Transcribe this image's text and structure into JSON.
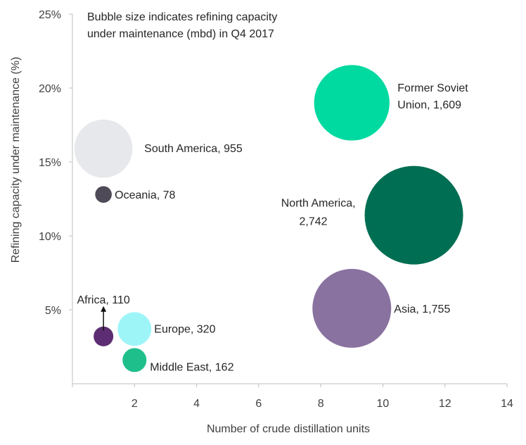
{
  "chart_data": {
    "type": "scatter",
    "title": "",
    "annotation": [
      "Bubble size indicates refining capacity",
      "under maintenance (mbd) in Q4 2017"
    ],
    "xlabel": "Number of crude distillation units",
    "ylabel": "Refining capacity under maintenance (%)",
    "xlim": [
      0,
      14
    ],
    "ylim": [
      0,
      0.25
    ],
    "x_ticks": [
      {
        "value": 2,
        "label": "2"
      },
      {
        "value": 4,
        "label": "4"
      },
      {
        "value": 6,
        "label": "6"
      },
      {
        "value": 8,
        "label": "8"
      },
      {
        "value": 10,
        "label": "10"
      },
      {
        "value": 12,
        "label": "12"
      },
      {
        "value": 14,
        "label": "14"
      }
    ],
    "y_ticks": [
      {
        "value": 0.05,
        "label": "5%"
      },
      {
        "value": 0.1,
        "label": "10%"
      },
      {
        "value": 0.15,
        "label": "15%"
      },
      {
        "value": 0.2,
        "label": "20%"
      },
      {
        "value": 0.25,
        "label": "25%"
      }
    ],
    "grid": false,
    "legend": "none",
    "series": [
      {
        "id": "former-soviet-union",
        "x": 9,
        "y": 0.19,
        "size": 1609,
        "label": [
          "Former Soviet",
          "Union, 1,609"
        ],
        "color": "#00D9A0"
      },
      {
        "id": "south-america",
        "x": 1,
        "y": 0.159,
        "size": 955,
        "label": [
          "South America,  955"
        ],
        "color": "#E6E8EB"
      },
      {
        "id": "oceania",
        "x": 1,
        "y": 0.128,
        "size": 78,
        "label": [
          "Oceania,  78"
        ],
        "color": "#4F4A57"
      },
      {
        "id": "north-america",
        "x": 11,
        "y": 0.114,
        "size": 2742,
        "label": [
          "North America,",
          "2,742"
        ],
        "color": "#006E52"
      },
      {
        "id": "asia",
        "x": 9,
        "y": 0.051,
        "size": 1755,
        "label": [
          "Asia, 1,755"
        ],
        "color": "#8A72A0"
      },
      {
        "id": "africa",
        "x": 1,
        "y": 0.032,
        "size": 110,
        "label": [
          "Africa, 110"
        ],
        "color": "#5C2D72"
      },
      {
        "id": "europe",
        "x": 2,
        "y": 0.037,
        "size": 320,
        "label": [
          "Europe,  320"
        ],
        "color": "#9EF5F8"
      },
      {
        "id": "middle-east",
        "x": 2,
        "y": 0.016,
        "size": 162,
        "label": [
          "Middle East,  162"
        ],
        "color": "#1FBF8C"
      }
    ]
  }
}
